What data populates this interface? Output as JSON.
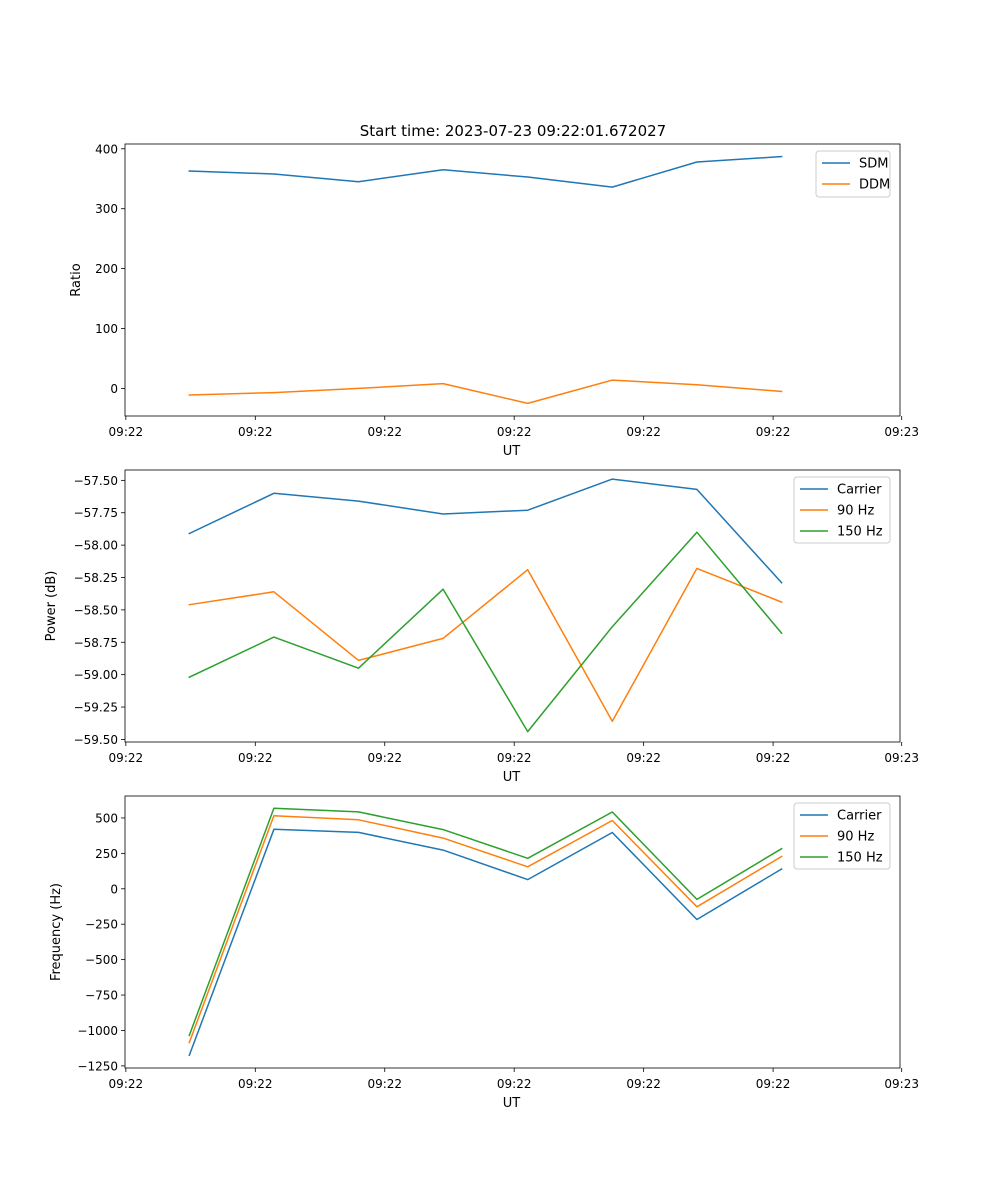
{
  "colors": {
    "c0": "#1f77b4",
    "c1": "#ff7f0e",
    "c2": "#2ca02c",
    "axis": "#000000",
    "legend_border": "#cccccc"
  },
  "title": "Start time: 2023-07-23 09:22:01.672027",
  "chart_data": [
    {
      "type": "line",
      "title": "Start time: 2023-07-23 09:22:01.672027",
      "xlabel": "UT",
      "ylabel": "Ratio",
      "xlim": [
        -0.76,
        8.4
      ],
      "ylim": [
        -46,
        408
      ],
      "xticks": [
        {
          "v": -0.75,
          "label": "09:22"
        },
        {
          "v": 0.78,
          "label": "09:22"
        },
        {
          "v": 2.31,
          "label": "09:22"
        },
        {
          "v": 3.84,
          "label": "09:22"
        },
        {
          "v": 5.37,
          "label": "09:22"
        },
        {
          "v": 6.9,
          "label": "09:22"
        },
        {
          "v": 8.42,
          "label": "09:23"
        }
      ],
      "yticks": [
        {
          "v": 0,
          "label": "0"
        },
        {
          "v": 100,
          "label": "100"
        },
        {
          "v": 200,
          "label": "200"
        },
        {
          "v": 300,
          "label": "300"
        },
        {
          "v": 400,
          "label": "400"
        }
      ],
      "legend": "top-right",
      "x": [
        0,
        1,
        2,
        3,
        4,
        5,
        6,
        7
      ],
      "series": [
        {
          "name": "SDM",
          "color": "#1f77b4",
          "values": [
            363,
            358,
            345,
            365,
            353,
            336,
            378,
            387
          ]
        },
        {
          "name": "DDM",
          "color": "#ff7f0e",
          "values": [
            -11,
            -7,
            0,
            8,
            -25,
            14,
            6,
            -5
          ]
        }
      ]
    },
    {
      "type": "line",
      "title": "",
      "xlabel": "UT",
      "ylabel": "Power (dB)",
      "xlim": [
        -0.76,
        8.4
      ],
      "ylim": [
        -59.52,
        -57.42
      ],
      "xticks": [
        {
          "v": -0.75,
          "label": "09:22"
        },
        {
          "v": 0.78,
          "label": "09:22"
        },
        {
          "v": 2.31,
          "label": "09:22"
        },
        {
          "v": 3.84,
          "label": "09:22"
        },
        {
          "v": 5.37,
          "label": "09:22"
        },
        {
          "v": 6.9,
          "label": "09:22"
        },
        {
          "v": 8.42,
          "label": "09:23"
        }
      ],
      "yticks": [
        {
          "v": -57.5,
          "label": "−57.50"
        },
        {
          "v": -57.75,
          "label": "−57.75"
        },
        {
          "v": -58.0,
          "label": "−58.00"
        },
        {
          "v": -58.25,
          "label": "−58.25"
        },
        {
          "v": -58.5,
          "label": "−58.50"
        },
        {
          "v": -58.75,
          "label": "−58.75"
        },
        {
          "v": -59.0,
          "label": "−59.00"
        },
        {
          "v": -59.25,
          "label": "−59.25"
        },
        {
          "v": -59.5,
          "label": "−59.50"
        }
      ],
      "legend": "top-right",
      "x": [
        0,
        1,
        2,
        3,
        4,
        5,
        6,
        7
      ],
      "series": [
        {
          "name": "Carrier",
          "color": "#1f77b4",
          "values": [
            -57.91,
            -57.6,
            -57.66,
            -57.76,
            -57.73,
            -57.49,
            -57.57,
            -58.29
          ]
        },
        {
          "name": "90 Hz",
          "color": "#ff7f0e",
          "values": [
            -58.46,
            -58.36,
            -58.89,
            -58.72,
            -58.19,
            -59.36,
            -58.18,
            -58.44
          ]
        },
        {
          "name": "150 Hz",
          "color": "#2ca02c",
          "values": [
            -59.02,
            -58.71,
            -58.95,
            -58.34,
            -59.44,
            -58.63,
            -57.9,
            -58.68
          ]
        }
      ]
    },
    {
      "type": "line",
      "title": "",
      "xlabel": "UT",
      "ylabel": "Frequency (Hz)",
      "xlim": [
        -0.76,
        8.4
      ],
      "ylim": [
        -1265,
        655
      ],
      "xticks": [
        {
          "v": -0.75,
          "label": "09:22"
        },
        {
          "v": 0.78,
          "label": "09:22"
        },
        {
          "v": 2.31,
          "label": "09:22"
        },
        {
          "v": 3.84,
          "label": "09:22"
        },
        {
          "v": 5.37,
          "label": "09:22"
        },
        {
          "v": 6.9,
          "label": "09:22"
        },
        {
          "v": 8.42,
          "label": "09:23"
        }
      ],
      "yticks": [
        {
          "v": 500,
          "label": "500"
        },
        {
          "v": 250,
          "label": "250"
        },
        {
          "v": 0,
          "label": "0"
        },
        {
          "v": -250,
          "label": "−250"
        },
        {
          "v": -500,
          "label": "−500"
        },
        {
          "v": -750,
          "label": "−750"
        },
        {
          "v": -1000,
          "label": "−1000"
        },
        {
          "v": -1250,
          "label": "−1250"
        }
      ],
      "legend": "top-right",
      "x": [
        0,
        1,
        2,
        3,
        4,
        5,
        6,
        7
      ],
      "series": [
        {
          "name": "Carrier",
          "color": "#1f77b4",
          "values": [
            -1175,
            420,
            398,
            273,
            65,
            397,
            -217,
            140
          ]
        },
        {
          "name": "90 Hz",
          "color": "#ff7f0e",
          "values": [
            -1085,
            515,
            487,
            358,
            155,
            482,
            -127,
            228
          ]
        },
        {
          "name": "150 Hz",
          "color": "#2ca02c",
          "values": [
            -1035,
            568,
            543,
            418,
            215,
            542,
            -75,
            283
          ]
        }
      ]
    }
  ]
}
